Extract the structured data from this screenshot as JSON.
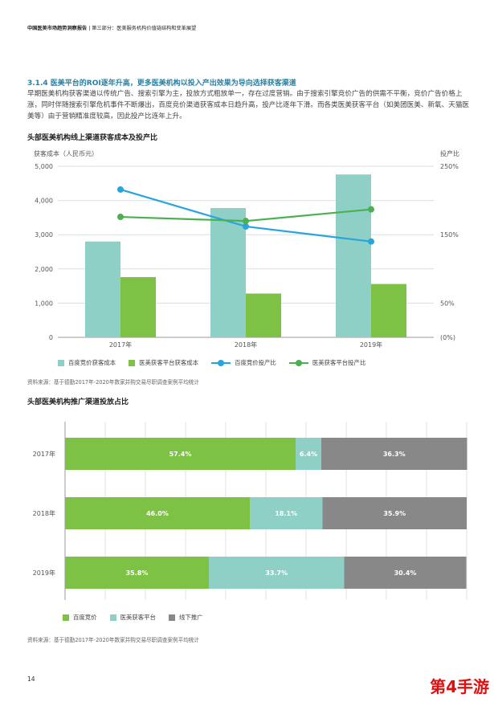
{
  "header": {
    "report": "中国医美市场趋势洞察报告",
    "section": "第三部分：医美服务机构价值链结构和变革展望"
  },
  "section_title": "3.1.4 医美平台的ROI逐年升高，更多医美机构以投入产出效果为导向选择获客渠道",
  "paragraph": "早期医美机构获客渠道以传统广告、搜索引擎为主，投放方式粗放单一，存在过度营销。由于搜索引擎竞价广告的供需不平衡，竞价广告价格上涨，同时伴随搜索引擎危机事件不断爆出，百度竞价渠道获客成本日趋升高，投产比逐年下滑。而各类医美获客平台（如美团医美、新氧、天猫医美等）由于营销精准度较高，因此投产比连年上升。",
  "chart1": {
    "title": "头部医美机构线上渠道获客成本及投产比",
    "source": "资料来源：基于德勤2017年-2020年数家并购交易尽职调查案例平均统计"
  },
  "chart2": {
    "title": "头部医美机构推广渠道投放占比",
    "source": "资料来源：基于德勤2017年-2020年数家并购交易尽职调查案例平均统计"
  },
  "chart_data": [
    {
      "type": "bar",
      "title": "头部医美机构线上渠道获客成本及投产比",
      "categories": [
        "2017年",
        "2018年",
        "2019年"
      ],
      "ylabel": "获客成本（人民币元）",
      "ylim": [
        0,
        5000
      ],
      "yticks": [
        "0",
        "1,000",
        "2,000",
        "3,000",
        "4,000",
        "5,000"
      ],
      "y2label": "投产比",
      "y2lim": [
        0,
        250
      ],
      "y2ticks": [
        "(0%)",
        "50%",
        "150%",
        "250%"
      ],
      "y2tick_values": [
        0,
        50,
        150,
        250
      ],
      "series": [
        {
          "name": "百度竞价获客成本",
          "kind": "bar",
          "axis": "left",
          "color": "#8fd0c6",
          "values": [
            2800,
            3780,
            4760
          ]
        },
        {
          "name": "医美获客平台获客成本",
          "kind": "bar",
          "axis": "left",
          "color": "#7dc245",
          "values": [
            1760,
            1280,
            1560
          ]
        },
        {
          "name": "百度竞价投产比",
          "kind": "line",
          "axis": "right",
          "color": "#27a5dc",
          "values": [
            216,
            162,
            140
          ]
        },
        {
          "name": "医美获客平台投产比",
          "kind": "line",
          "axis": "right",
          "color": "#4caf50",
          "values": [
            176,
            170,
            187
          ]
        }
      ],
      "grid": true,
      "legend": "bottom"
    },
    {
      "type": "bar",
      "orientation": "horizontal-stacked",
      "title": "头部医美机构推广渠道投放占比",
      "categories": [
        "2017年",
        "2018年",
        "2019年"
      ],
      "series": [
        {
          "name": "百度竞价",
          "color": "#7dc245",
          "values": [
            57.4,
            46.0,
            35.8
          ],
          "labels": [
            "57.4%",
            "46.0%",
            "35.8%"
          ]
        },
        {
          "name": "医美获客平台",
          "color": "#8fd0c6",
          "values": [
            6.4,
            18.1,
            33.7
          ],
          "labels": [
            "6.4%",
            "18.1%",
            "33.7%"
          ]
        },
        {
          "name": "线下推广",
          "color": "#888888",
          "values": [
            36.3,
            35.9,
            30.4
          ],
          "labels": [
            "36.3%",
            "35.9%",
            "30.4%"
          ]
        }
      ],
      "xlim": [
        0,
        100
      ],
      "grid": true,
      "legend": "bottom"
    }
  ],
  "page_number": "14",
  "watermark": "第4手游"
}
